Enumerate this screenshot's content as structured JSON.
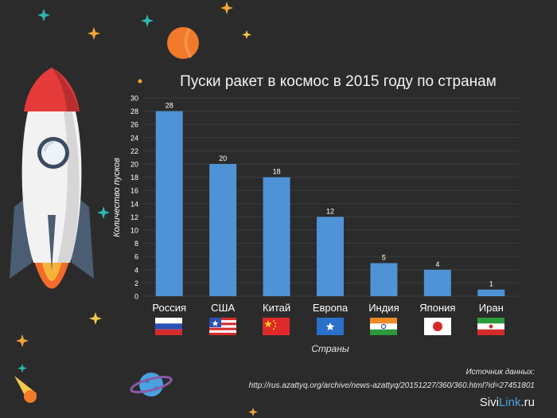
{
  "chart_data": {
    "type": "bar",
    "title": "Пуски ракет в космос в 2015 году по странам",
    "xlabel": "Страны",
    "ylabel": "Количество пусков",
    "categories": [
      "Россия",
      "США",
      "Китай",
      "Европа",
      "Индия",
      "Япония",
      "Иран"
    ],
    "values": [
      28,
      20,
      18,
      12,
      5,
      4,
      1
    ],
    "ylim": [
      0,
      30
    ],
    "yticks": [
      0,
      2,
      4,
      6,
      8,
      10,
      12,
      14,
      16,
      18,
      20,
      22,
      24,
      26,
      28,
      30
    ],
    "grid": true,
    "bar_color": "#4f93d6"
  },
  "source": {
    "label": "Источник данных:",
    "url": "http://rus.azattyq.org/archive/news-azattyq/20151227/360/360.html?id=27451801"
  },
  "brand": {
    "part1": "Sivi",
    "part2": "Link",
    "part3": ".ru"
  },
  "colors": {
    "background": "#2b2b2b",
    "gridline": "#3c3c3c",
    "accent": "#4aa3df"
  }
}
